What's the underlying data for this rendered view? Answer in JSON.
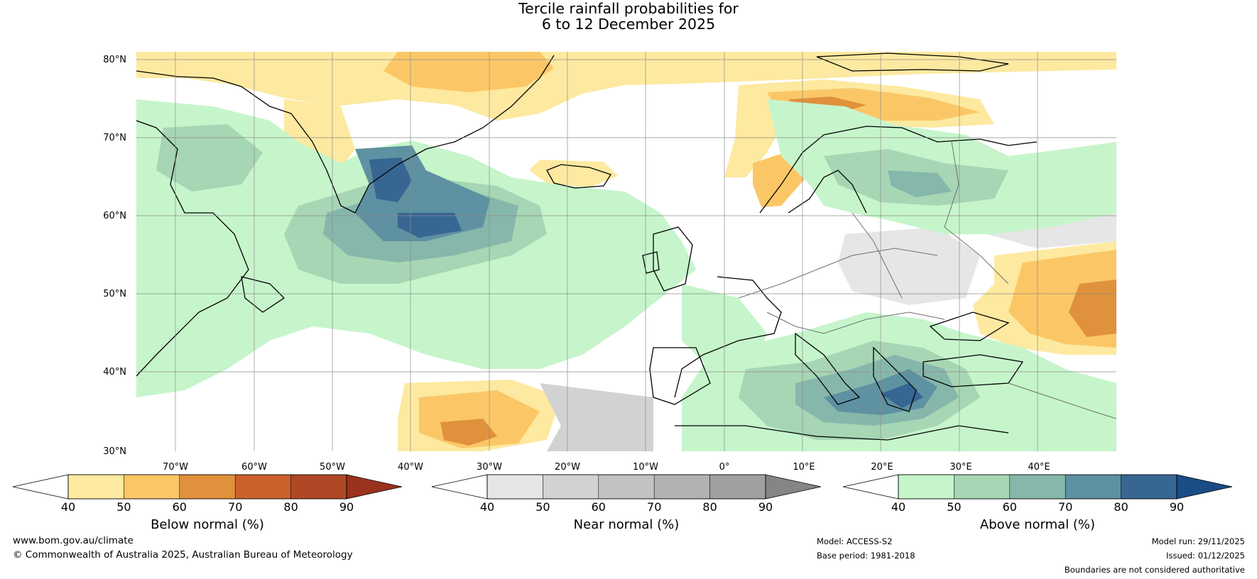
{
  "title": {
    "line1": "Tercile rainfall probabilities for",
    "line2": "6 to 12 December 2025"
  },
  "colors": {
    "ocean_bg": "#ffffff",
    "below": [
      "#fde9a0",
      "#fbc766",
      "#e0913c",
      "#cc612d",
      "#b04826",
      "#9a321e"
    ],
    "near": [
      "#e6e6e6",
      "#d2d2d2",
      "#c2c2c2",
      "#b2b2b2",
      "#a0a0a0",
      "#858585"
    ],
    "above": [
      "#c6f5cb",
      "#a6d6b4",
      "#86b7ab",
      "#5e91a1",
      "#376693",
      "#1a4c86"
    ]
  },
  "map": {
    "lat_labels": [
      "80°N",
      "70°N",
      "60°N",
      "50°N",
      "40°N",
      "30°N"
    ],
    "lon_labels": [
      "70°W",
      "60°W",
      "50°W",
      "40°W",
      "30°W",
      "20°W",
      "10°W",
      "0°",
      "10°E",
      "20°E",
      "30°E",
      "40°E"
    ]
  },
  "colorbars": [
    {
      "title": "Below normal (%)",
      "ticks": [
        "40",
        "50",
        "60",
        "70",
        "80",
        "90"
      ]
    },
    {
      "title": "Near normal (%)",
      "ticks": [
        "40",
        "50",
        "60",
        "70",
        "80",
        "90"
      ]
    },
    {
      "title": "Above normal (%)",
      "ticks": [
        "40",
        "50",
        "60",
        "70",
        "80",
        "90"
      ]
    }
  ],
  "footer": {
    "url": "www.bom.gov.au/climate",
    "copyright": "© Commonwealth of Australia 2025, Australian Bureau of Meteorology",
    "model": "Model: ACCESS-S2",
    "base_period": "Base period: 1981-2018",
    "model_run": "Model run: 29/11/2025",
    "issued": "Issued: 01/12/2025",
    "disclaimer": "Boundaries are not considered authoritative"
  }
}
